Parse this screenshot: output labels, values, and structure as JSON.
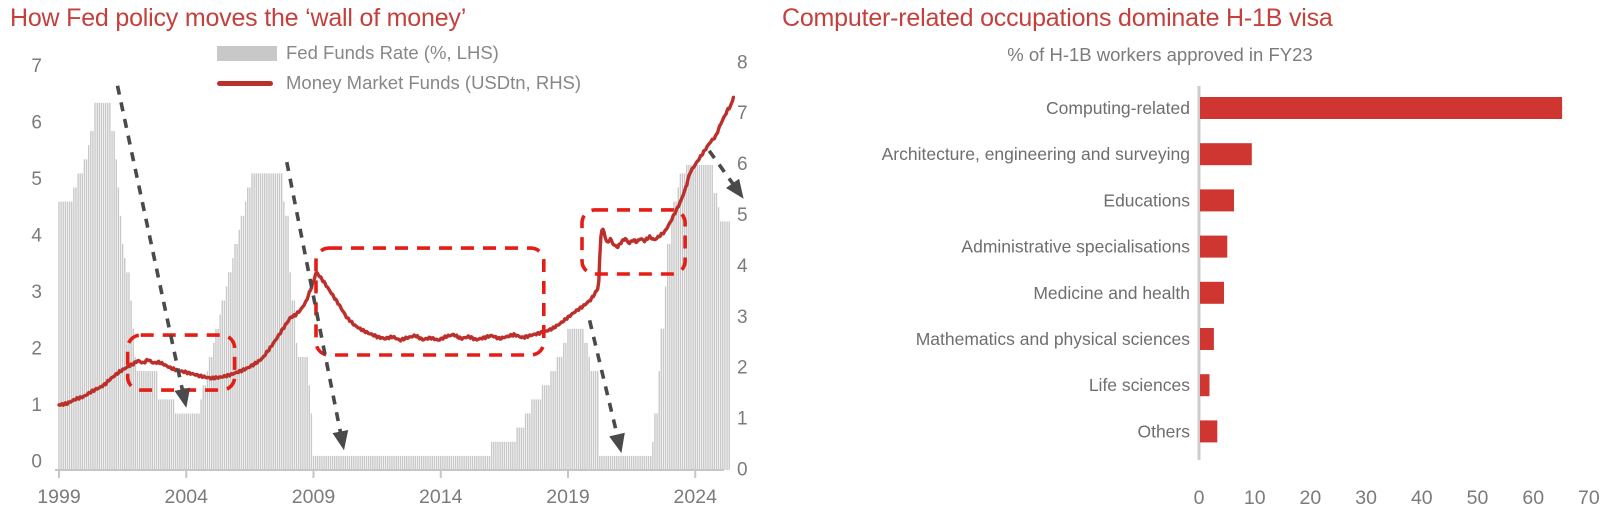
{
  "colors": {
    "title_red": "#c5403c",
    "bar_red": "#cf3632",
    "line_red": "#bc302c",
    "annotation_red": "#e51d17",
    "gray_bar": "#c8c8c8",
    "arrow_gray": "#4a4a4a",
    "axis_line_gray": "#c6c6c6",
    "text_gray": "#7b7b7b",
    "label_gray": "#6e6e6e"
  },
  "charts": {
    "left": {
      "title": "How Fed policy moves the ‘wall of money’",
      "legend": [
        {
          "label": "Fed Funds Rate (%, LHS)",
          "swatch": "bar",
          "color": "#c8c8c8"
        },
        {
          "label": "Money Market Funds (USDtn, RHS)",
          "swatch": "line",
          "color": "#bc302c"
        }
      ]
    },
    "right": {
      "title": "Computer-related occupations dominate H-1B visa",
      "subtitle": "% of H-1B workers approved in FY23"
    }
  },
  "chart_data": [
    {
      "id": "fed-policy-wall-of-money",
      "type": "combo",
      "title": "How Fed policy moves the ‘wall of money’",
      "x_range": [
        1999,
        2025.6
      ],
      "x_ticks": [
        1999,
        2004,
        2009,
        2014,
        2019,
        2024
      ],
      "left_axis": {
        "name": "Fed Funds Rate (%)",
        "range": [
          0,
          7
        ],
        "ticks": [
          0,
          1,
          2,
          3,
          4,
          5,
          6,
          7
        ]
      },
      "right_axis": {
        "name": "Money Market Funds (USDtn)",
        "range": [
          0,
          8
        ],
        "ticks": [
          0,
          1,
          2,
          3,
          4,
          5,
          6,
          7,
          8
        ]
      },
      "series": [
        {
          "name": "Fed Funds Rate (%, LHS)",
          "type": "bar",
          "axis": "left",
          "color": "#c8c8c8",
          "step_points": [
            [
              1999.0,
              4.75
            ],
            [
              1999.5,
              5.0
            ],
            [
              1999.7,
              5.25
            ],
            [
              1999.95,
              5.5
            ],
            [
              2000.1,
              5.75
            ],
            [
              2000.2,
              6.0
            ],
            [
              2000.4,
              6.5
            ],
            [
              2001.05,
              6.0
            ],
            [
              2001.2,
              5.5
            ],
            [
              2001.3,
              5.0
            ],
            [
              2001.38,
              4.5
            ],
            [
              2001.45,
              4.0
            ],
            [
              2001.55,
              3.75
            ],
            [
              2001.65,
              3.5
            ],
            [
              2001.75,
              3.0
            ],
            [
              2001.85,
              2.5
            ],
            [
              2001.92,
              2.0
            ],
            [
              2002.0,
              1.75
            ],
            [
              2002.9,
              1.25
            ],
            [
              2003.5,
              1.0
            ],
            [
              2004.5,
              1.25
            ],
            [
              2004.63,
              1.5
            ],
            [
              2004.75,
              1.75
            ],
            [
              2004.88,
              2.0
            ],
            [
              2005.0,
              2.25
            ],
            [
              2005.13,
              2.5
            ],
            [
              2005.25,
              2.75
            ],
            [
              2005.38,
              3.0
            ],
            [
              2005.5,
              3.25
            ],
            [
              2005.63,
              3.5
            ],
            [
              2005.75,
              3.75
            ],
            [
              2005.88,
              4.0
            ],
            [
              2006.0,
              4.25
            ],
            [
              2006.13,
              4.5
            ],
            [
              2006.25,
              4.75
            ],
            [
              2006.38,
              5.0
            ],
            [
              2006.5,
              5.25
            ],
            [
              2007.75,
              4.75
            ],
            [
              2007.9,
              4.5
            ],
            [
              2008.0,
              3.5
            ],
            [
              2008.1,
              3.0
            ],
            [
              2008.25,
              2.25
            ],
            [
              2008.35,
              2.0
            ],
            [
              2008.8,
              1.5
            ],
            [
              2008.9,
              1.0
            ],
            [
              2008.96,
              0.25
            ],
            [
              2015.95,
              0.5
            ],
            [
              2016.95,
              0.75
            ],
            [
              2017.25,
              1.0
            ],
            [
              2017.5,
              1.25
            ],
            [
              2017.95,
              1.5
            ],
            [
              2018.25,
              1.75
            ],
            [
              2018.5,
              2.0
            ],
            [
              2018.75,
              2.25
            ],
            [
              2018.95,
              2.5
            ],
            [
              2019.6,
              2.25
            ],
            [
              2019.75,
              2.0
            ],
            [
              2019.85,
              1.75
            ],
            [
              2020.2,
              0.25
            ],
            [
              2022.25,
              0.5
            ],
            [
              2022.4,
              1.0
            ],
            [
              2022.5,
              1.75
            ],
            [
              2022.6,
              2.5
            ],
            [
              2022.75,
              3.25
            ],
            [
              2022.9,
              4.0
            ],
            [
              2023.0,
              4.5
            ],
            [
              2023.1,
              4.75
            ],
            [
              2023.25,
              5.0
            ],
            [
              2023.4,
              5.25
            ],
            [
              2023.6,
              5.4
            ],
            [
              2024.7,
              4.9
            ],
            [
              2024.85,
              4.65
            ],
            [
              2024.95,
              4.4
            ]
          ],
          "end_year": 2025.4
        },
        {
          "name": "Money Market Funds (USDtn, RHS)",
          "type": "line",
          "axis": "right",
          "color": "#bc302c",
          "points": [
            [
              1999.0,
              1.28
            ],
            [
              1999.3,
              1.3
            ],
            [
              1999.6,
              1.38
            ],
            [
              2000.0,
              1.45
            ],
            [
              2000.3,
              1.55
            ],
            [
              2000.6,
              1.62
            ],
            [
              2000.8,
              1.68
            ],
            [
              2001.0,
              1.78
            ],
            [
              2001.3,
              1.9
            ],
            [
              2001.6,
              2.0
            ],
            [
              2001.9,
              2.08
            ],
            [
              2002.1,
              2.15
            ],
            [
              2002.3,
              2.1
            ],
            [
              2002.5,
              2.17
            ],
            [
              2002.7,
              2.1
            ],
            [
              2002.9,
              2.12
            ],
            [
              2003.1,
              2.08
            ],
            [
              2003.4,
              2.0
            ],
            [
              2003.7,
              1.95
            ],
            [
              2004.0,
              1.92
            ],
            [
              2004.3,
              1.88
            ],
            [
              2004.6,
              1.84
            ],
            [
              2005.0,
              1.8
            ],
            [
              2005.3,
              1.82
            ],
            [
              2005.6,
              1.85
            ],
            [
              2006.0,
              1.92
            ],
            [
              2006.4,
              2.0
            ],
            [
              2006.8,
              2.12
            ],
            [
              2007.0,
              2.2
            ],
            [
              2007.3,
              2.4
            ],
            [
              2007.6,
              2.62
            ],
            [
              2007.9,
              2.85
            ],
            [
              2008.1,
              3.0
            ],
            [
              2008.3,
              3.05
            ],
            [
              2008.5,
              3.15
            ],
            [
              2008.7,
              3.3
            ],
            [
              2008.85,
              3.5
            ],
            [
              2009.0,
              3.7
            ],
            [
              2009.1,
              3.89
            ],
            [
              2009.25,
              3.8
            ],
            [
              2009.4,
              3.7
            ],
            [
              2009.6,
              3.55
            ],
            [
              2009.8,
              3.4
            ],
            [
              2010.0,
              3.25
            ],
            [
              2010.3,
              3.0
            ],
            [
              2010.6,
              2.85
            ],
            [
              2010.9,
              2.75
            ],
            [
              2011.2,
              2.68
            ],
            [
              2011.5,
              2.62
            ],
            [
              2011.8,
              2.58
            ],
            [
              2012.1,
              2.62
            ],
            [
              2012.4,
              2.55
            ],
            [
              2012.7,
              2.6
            ],
            [
              2013.0,
              2.64
            ],
            [
              2013.3,
              2.56
            ],
            [
              2013.6,
              2.6
            ],
            [
              2013.9,
              2.55
            ],
            [
              2014.2,
              2.62
            ],
            [
              2014.5,
              2.66
            ],
            [
              2014.8,
              2.58
            ],
            [
              2015.1,
              2.62
            ],
            [
              2015.4,
              2.56
            ],
            [
              2015.7,
              2.6
            ],
            [
              2016.0,
              2.64
            ],
            [
              2016.3,
              2.58
            ],
            [
              2016.6,
              2.62
            ],
            [
              2016.9,
              2.66
            ],
            [
              2017.2,
              2.6
            ],
            [
              2017.5,
              2.64
            ],
            [
              2017.8,
              2.68
            ],
            [
              2018.1,
              2.72
            ],
            [
              2018.4,
              2.78
            ],
            [
              2018.7,
              2.88
            ],
            [
              2019.0,
              3.0
            ],
            [
              2019.3,
              3.12
            ],
            [
              2019.6,
              3.22
            ],
            [
              2019.9,
              3.35
            ],
            [
              2020.1,
              3.5
            ],
            [
              2020.2,
              3.6
            ],
            [
              2020.28,
              4.55
            ],
            [
              2020.35,
              4.77
            ],
            [
              2020.45,
              4.6
            ],
            [
              2020.55,
              4.45
            ],
            [
              2020.65,
              4.55
            ],
            [
              2020.8,
              4.42
            ],
            [
              2020.95,
              4.38
            ],
            [
              2021.1,
              4.48
            ],
            [
              2021.25,
              4.55
            ],
            [
              2021.4,
              4.45
            ],
            [
              2021.55,
              4.52
            ],
            [
              2021.7,
              4.48
            ],
            [
              2021.85,
              4.55
            ],
            [
              2022.0,
              4.5
            ],
            [
              2022.2,
              4.58
            ],
            [
              2022.4,
              4.52
            ],
            [
              2022.6,
              4.6
            ],
            [
              2022.8,
              4.68
            ],
            [
              2023.0,
              4.85
            ],
            [
              2023.2,
              5.05
            ],
            [
              2023.4,
              5.25
            ],
            [
              2023.6,
              5.5
            ],
            [
              2023.8,
              5.85
            ],
            [
              2024.0,
              6.0
            ],
            [
              2024.2,
              6.15
            ],
            [
              2024.4,
              6.3
            ],
            [
              2024.6,
              6.45
            ],
            [
              2024.8,
              6.55
            ],
            [
              2025.0,
              6.8
            ],
            [
              2025.15,
              6.95
            ],
            [
              2025.3,
              7.1
            ],
            [
              2025.4,
              7.15
            ],
            [
              2025.5,
              7.33
            ]
          ]
        }
      ],
      "annotations": {
        "rects": [
          {
            "x1": 2001.7,
            "x2": 2005.9,
            "y1": 1.57,
            "y2": 2.65,
            "axis": "right"
          },
          {
            "x1": 2009.1,
            "x2": 2018.05,
            "y1": 2.26,
            "y2": 4.36,
            "axis": "right"
          },
          {
            "x1": 2019.55,
            "x2": 2023.6,
            "y1": 3.85,
            "y2": 5.11,
            "axis": "right"
          }
        ],
        "arrows": [
          {
            "x1": 2001.3,
            "y1": 6.8,
            "x2": 2004.0,
            "y2": 1.1,
            "axis": "left"
          },
          {
            "x1": 2007.95,
            "y1": 5.45,
            "x2": 2010.2,
            "y2": 0.35,
            "axis": "left"
          },
          {
            "x1": 2019.85,
            "y1": 2.65,
            "x2": 2021.1,
            "y2": 0.3,
            "axis": "left"
          },
          {
            "x1": 2024.55,
            "y1": 5.65,
            "x2": 2025.9,
            "y2": 4.8,
            "axis": "left"
          }
        ]
      }
    },
    {
      "id": "h1b-occupations",
      "type": "bar",
      "orientation": "horizontal",
      "title": "Computer-related occupations dominate H-1B visa",
      "subtitle": "% of H-1B workers approved in FY23",
      "categories": [
        "Computing-related",
        "Architecture, engineering and surveying",
        "Educations",
        "Administrative specialisations",
        "Medicine and health",
        "Mathematics and physical sciences",
        "Life sciences",
        "Others"
      ],
      "values": [
        65,
        9.3,
        6.1,
        4.9,
        4.3,
        2.5,
        1.7,
        3.1
      ],
      "xlim": [
        0,
        70
      ],
      "x_ticks": [
        0,
        10,
        20,
        30,
        40,
        50,
        60,
        70
      ],
      "bar_color": "#cf3632",
      "legend_position": "none",
      "grid": false
    }
  ]
}
